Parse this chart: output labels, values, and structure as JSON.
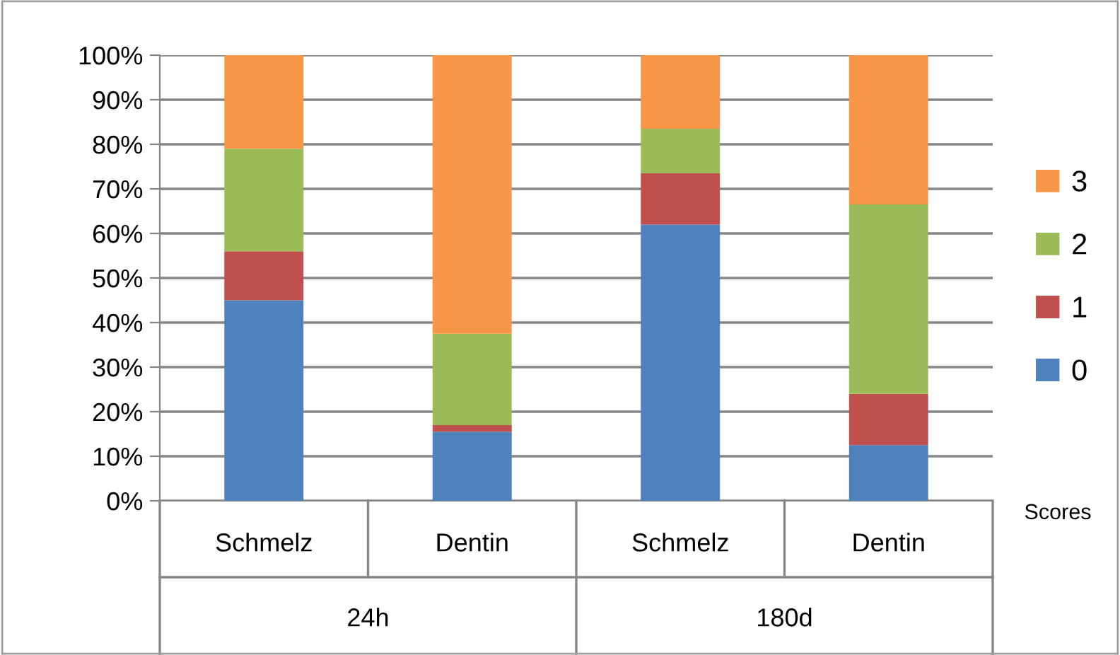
{
  "chart_data": {
    "type": "bar",
    "stacked": true,
    "categories": [
      "Schmelz",
      "Dentin",
      "Schmelz",
      "Dentin"
    ],
    "series": [
      {
        "name": "0",
        "color": "#4f81bd",
        "values": [
          45,
          15.5,
          62,
          12.5
        ]
      },
      {
        "name": "1",
        "color": "#c0504d",
        "values": [
          11,
          1.5,
          11.5,
          11.5
        ]
      },
      {
        "name": "2",
        "color": "#9bbb59",
        "values": [
          23,
          20.5,
          10,
          42.5
        ]
      },
      {
        "name": "3",
        "color": "#f79646",
        "values": [
          21,
          62.5,
          16.5,
          33.5
        ]
      }
    ],
    "ylim": [
      0,
      100
    ],
    "yticks": [
      {
        "value": 0,
        "label": "0%"
      },
      {
        "value": 10,
        "label": "10%"
      },
      {
        "value": 20,
        "label": "20%"
      },
      {
        "value": 30,
        "label": "30%"
      },
      {
        "value": 40,
        "label": "40%"
      },
      {
        "value": 50,
        "label": "50%"
      },
      {
        "value": 60,
        "label": "60%"
      },
      {
        "value": 70,
        "label": "70%"
      },
      {
        "value": 80,
        "label": "80%"
      },
      {
        "value": 90,
        "label": "90%"
      },
      {
        "value": 100,
        "label": "100%"
      }
    ],
    "grid": "y",
    "legend": "right",
    "legend_title": "Scores",
    "annotations": [
      "24h",
      "180d"
    ]
  }
}
